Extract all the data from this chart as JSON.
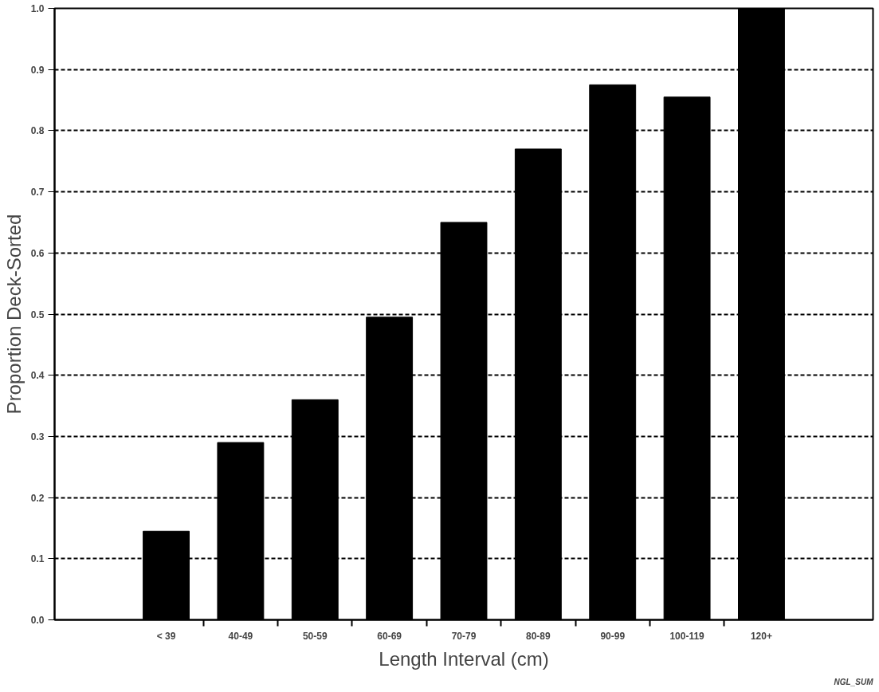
{
  "chart_data": {
    "type": "bar",
    "xlabel": "Length Interval (cm)",
    "ylabel": "Proportion Deck-Sorted",
    "categories": [
      null,
      "< 39",
      "40-49",
      "50-59",
      "60-69",
      "70-79",
      "80-89",
      "90-99",
      "100-119",
      "120+",
      null
    ],
    "values": [
      null,
      0.145,
      0.29,
      0.36,
      0.495,
      0.65,
      0.77,
      0.875,
      0.855,
      1.0,
      null
    ],
    "color": "#000000",
    "ylim": [
      0,
      1
    ],
    "yticks": [
      {
        "value": 0,
        "label": "0.0"
      },
      0.1,
      0.2,
      0.3,
      0.4,
      0.5,
      0.6,
      0.7,
      0.8,
      0.9,
      {
        "value": 1,
        "label": "1.0"
      }
    ],
    "grid": "y",
    "annotations": [
      "NGL_SUM"
    ]
  }
}
